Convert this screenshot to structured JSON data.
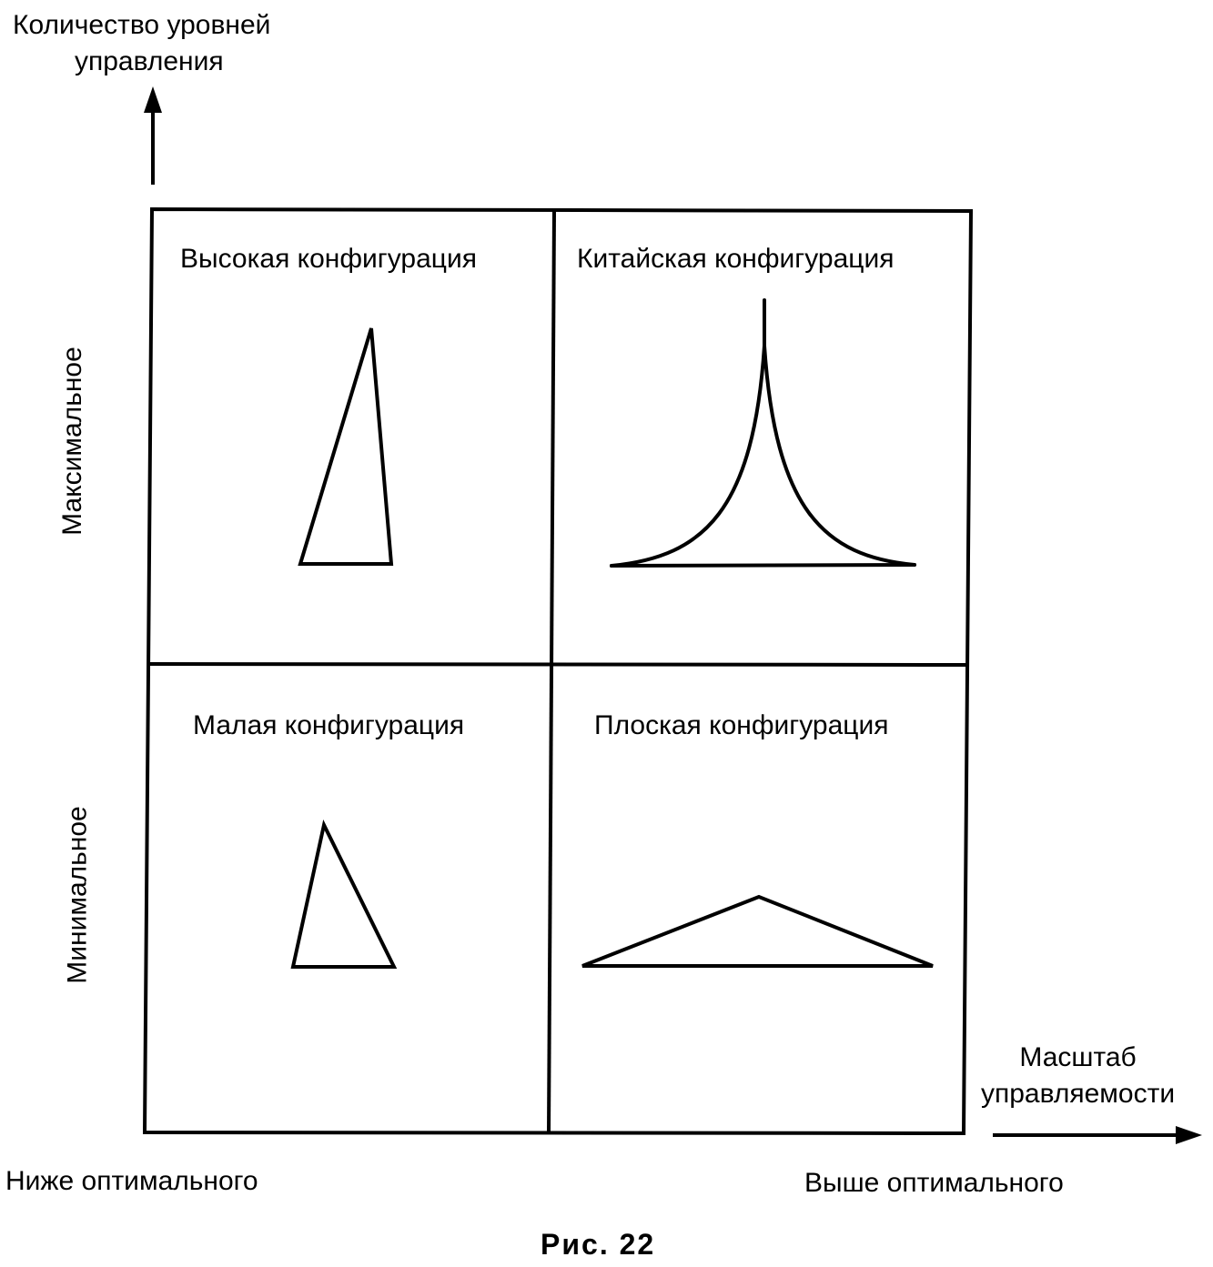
{
  "y_axis": {
    "title_line1": "Количество уровней",
    "title_line2": "управления",
    "label_high": "Максимальное",
    "label_low": "Минимальное"
  },
  "x_axis": {
    "title_line1": "Масштаб",
    "title_line2": "управляемости",
    "label_low": "Ниже оптимального",
    "label_high": "Выше оптимального"
  },
  "quadrants": {
    "top_left": {
      "title": "Высокая конфигурация",
      "shape": "tall-narrow-triangle"
    },
    "top_right": {
      "title": "Китайская конфигурация",
      "shape": "concave-spire"
    },
    "bottom_left": {
      "title": "Малая конфигурация",
      "shape": "small-triangle"
    },
    "bottom_right": {
      "title": "Плоская конфигурация",
      "shape": "wide-flat-triangle"
    }
  },
  "caption": "Рис. 22",
  "colors": {
    "line": "#000000",
    "background": "#ffffff"
  }
}
